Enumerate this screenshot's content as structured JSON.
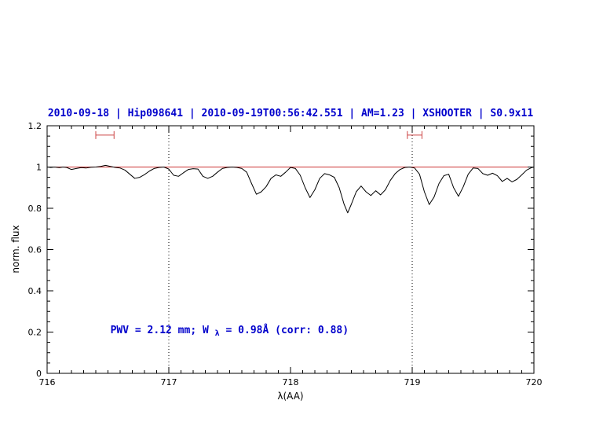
{
  "chart_data": {
    "type": "line",
    "title": "2010-09-18 | Hip098641 | 2010-09-19T00:56:42.551 | AM=1.23 | XSHOOTER | S0.9x11",
    "title_color": "#0000cc",
    "xlabel": "λ(AA)",
    "ylabel": "norm. flux",
    "xlim": [
      716,
      720
    ],
    "ylim": [
      0,
      1.2
    ],
    "x_major_ticks": [
      716,
      717,
      718,
      719,
      720
    ],
    "x_tick_labels": [
      "716",
      "717",
      "718",
      "719",
      "720"
    ],
    "x_minor_tick_step": 0.1,
    "y_major_ticks": [
      0,
      0.2,
      0.4,
      0.6,
      0.8,
      1,
      1.2
    ],
    "y_tick_labels": [
      "0",
      "0.2",
      "0.4",
      "0.6",
      "0.8",
      "1",
      "1.2"
    ],
    "y_minor_tick_step": 0.05,
    "grid": false,
    "legend": null,
    "reference_lines": {
      "horizontal": [
        {
          "y": 1.0,
          "color": "#cc3333",
          "style": "solid"
        }
      ],
      "vertical": [
        {
          "x": 717,
          "color": "#000000",
          "style": "dotted"
        },
        {
          "x": 719,
          "color": "#000000",
          "style": "dotted"
        }
      ]
    },
    "markers": [
      {
        "type": "horizontal-bracket",
        "x_start": 716.4,
        "x_end": 716.55,
        "y": 1.155,
        "color": "#cc4444"
      },
      {
        "type": "horizontal-bracket",
        "x_start": 718.96,
        "x_end": 719.08,
        "y": 1.155,
        "color": "#cc4444"
      }
    ],
    "annotation": {
      "prefix": "PWV = 2.12 mm; W",
      "sub": "λ",
      "suffix": " = 0.98Å (corr: 0.88)",
      "color": "#0000cc",
      "x": 716.52,
      "y": 0.195
    },
    "series": [
      {
        "name": "spectrum",
        "color": "#000000",
        "points": [
          [
            716.0,
            1.0
          ],
          [
            716.03,
            0.998
          ],
          [
            716.06,
            1.0
          ],
          [
            716.1,
            0.997
          ],
          [
            716.13,
            1.0
          ],
          [
            716.16,
            0.998
          ],
          [
            716.2,
            0.988
          ],
          [
            716.24,
            0.993
          ],
          [
            716.28,
            0.997
          ],
          [
            716.32,
            0.995
          ],
          [
            716.36,
            0.999
          ],
          [
            716.4,
            1.0
          ],
          [
            716.44,
            1.003
          ],
          [
            716.48,
            1.008
          ],
          [
            716.52,
            1.003
          ],
          [
            716.56,
            0.998
          ],
          [
            716.6,
            0.995
          ],
          [
            716.64,
            0.985
          ],
          [
            716.68,
            0.965
          ],
          [
            716.72,
            0.945
          ],
          [
            716.76,
            0.95
          ],
          [
            716.8,
            0.963
          ],
          [
            716.84,
            0.98
          ],
          [
            716.88,
            0.993
          ],
          [
            716.92,
            0.998
          ],
          [
            716.96,
            1.0
          ],
          [
            717.0,
            0.99
          ],
          [
            717.04,
            0.96
          ],
          [
            717.08,
            0.955
          ],
          [
            717.12,
            0.972
          ],
          [
            717.16,
            0.988
          ],
          [
            717.2,
            0.992
          ],
          [
            717.24,
            0.99
          ],
          [
            717.28,
            0.955
          ],
          [
            717.32,
            0.945
          ],
          [
            717.36,
            0.955
          ],
          [
            717.4,
            0.975
          ],
          [
            717.44,
            0.993
          ],
          [
            717.48,
            0.998
          ],
          [
            717.52,
            1.0
          ],
          [
            717.56,
            0.998
          ],
          [
            717.6,
            0.993
          ],
          [
            717.64,
            0.975
          ],
          [
            717.68,
            0.92
          ],
          [
            717.72,
            0.868
          ],
          [
            717.76,
            0.88
          ],
          [
            717.8,
            0.905
          ],
          [
            717.84,
            0.945
          ],
          [
            717.88,
            0.962
          ],
          [
            717.92,
            0.955
          ],
          [
            717.96,
            0.975
          ],
          [
            718.0,
            0.998
          ],
          [
            718.04,
            0.993
          ],
          [
            718.08,
            0.96
          ],
          [
            718.12,
            0.9
          ],
          [
            718.16,
            0.852
          ],
          [
            718.2,
            0.89
          ],
          [
            718.24,
            0.945
          ],
          [
            718.28,
            0.968
          ],
          [
            718.32,
            0.962
          ],
          [
            718.36,
            0.95
          ],
          [
            718.4,
            0.9
          ],
          [
            718.44,
            0.82
          ],
          [
            718.47,
            0.778
          ],
          [
            718.5,
            0.82
          ],
          [
            718.54,
            0.88
          ],
          [
            718.58,
            0.908
          ],
          [
            718.62,
            0.88
          ],
          [
            718.66,
            0.862
          ],
          [
            718.7,
            0.885
          ],
          [
            718.74,
            0.865
          ],
          [
            718.78,
            0.89
          ],
          [
            718.82,
            0.935
          ],
          [
            718.86,
            0.968
          ],
          [
            718.9,
            0.988
          ],
          [
            718.94,
            0.998
          ],
          [
            718.98,
            1.0
          ],
          [
            719.02,
            0.995
          ],
          [
            719.06,
            0.965
          ],
          [
            719.1,
            0.88
          ],
          [
            719.14,
            0.818
          ],
          [
            719.18,
            0.855
          ],
          [
            719.22,
            0.92
          ],
          [
            719.26,
            0.958
          ],
          [
            719.3,
            0.965
          ],
          [
            719.34,
            0.9
          ],
          [
            719.38,
            0.858
          ],
          [
            719.42,
            0.905
          ],
          [
            719.46,
            0.965
          ],
          [
            719.5,
            0.995
          ],
          [
            719.54,
            0.993
          ],
          [
            719.58,
            0.968
          ],
          [
            719.62,
            0.96
          ],
          [
            719.66,
            0.97
          ],
          [
            719.7,
            0.958
          ],
          [
            719.74,
            0.93
          ],
          [
            719.78,
            0.945
          ],
          [
            719.82,
            0.928
          ],
          [
            719.86,
            0.94
          ],
          [
            719.9,
            0.962
          ],
          [
            719.94,
            0.985
          ],
          [
            719.98,
            0.997
          ],
          [
            720.0,
            1.0
          ]
        ]
      }
    ]
  }
}
